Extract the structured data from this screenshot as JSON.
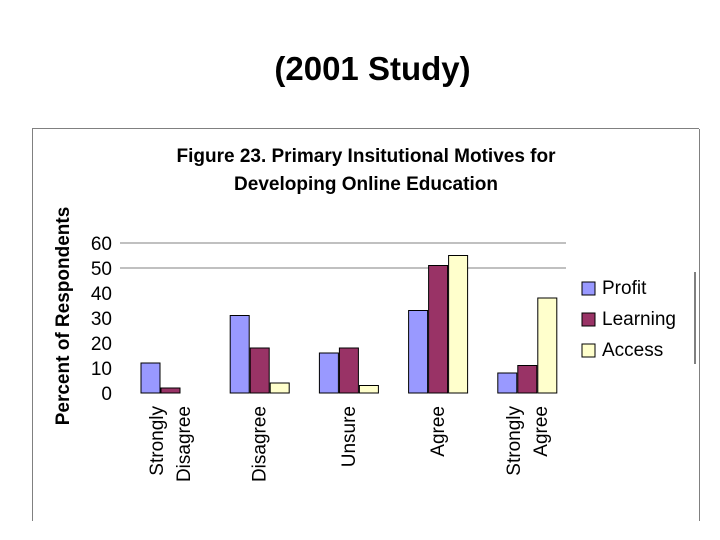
{
  "slide": {
    "title": "(2001 Study)"
  },
  "chart_data": {
    "type": "bar",
    "title": "Figure 23. Primary Insitutional Motives for Developing Online Education",
    "title_lines": [
      "Figure 23. Primary Insitutional Motives for",
      "Developing Online Education"
    ],
    "ylabel": "Percent of Respondents",
    "xlabel": "",
    "ylim": [
      0,
      60
    ],
    "yticks": [
      0,
      10,
      20,
      30,
      40,
      50,
      60
    ],
    "grid": "horizontal at 50 and 60",
    "legend_position": "right",
    "categories": [
      "Strongly Disagree",
      "Disagree",
      "Unsure",
      "Agree",
      "Strongly Agree"
    ],
    "category_lines": [
      [
        "Strongly",
        "Disagree"
      ],
      [
        "Disagree"
      ],
      [
        "Unsure"
      ],
      [
        "Agree"
      ],
      [
        "Strongly",
        "Agree"
      ]
    ],
    "series": [
      {
        "name": "Profit",
        "color": "#9999ff",
        "values": [
          12,
          31,
          16,
          33,
          8
        ]
      },
      {
        "name": "Learning",
        "color": "#993366",
        "values": [
          2,
          18,
          18,
          51,
          11
        ]
      },
      {
        "name": "Access",
        "color": "#ffffcc",
        "values": [
          0,
          4,
          3,
          55,
          38
        ]
      }
    ]
  }
}
